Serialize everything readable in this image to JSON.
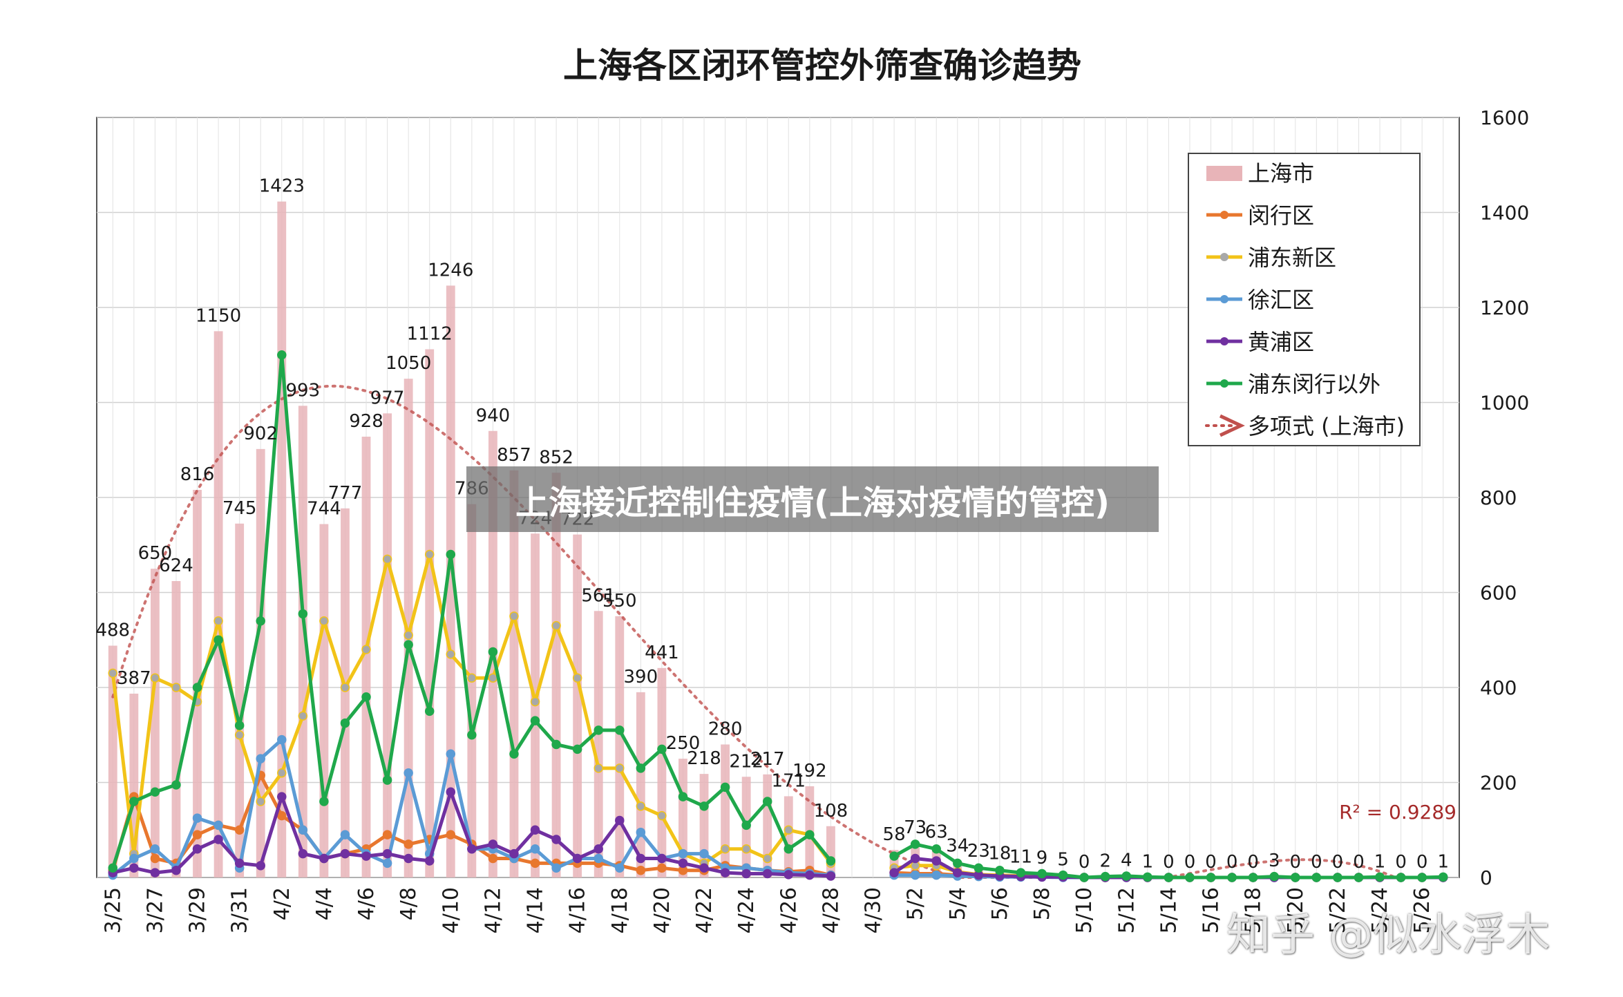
{
  "chart_data": {
    "type": "bar",
    "title": "上海各区闭环管控外筛查确诊趋势",
    "x": [
      "3/25",
      "3/26",
      "3/27",
      "3/28",
      "3/29",
      "3/30",
      "3/31",
      "4/1",
      "4/2",
      "4/3",
      "4/4",
      "4/5",
      "4/6",
      "4/7",
      "4/8",
      "4/9",
      "4/10",
      "4/11",
      "4/12",
      "4/13",
      "4/14",
      "4/15",
      "4/16",
      "4/17",
      "4/18",
      "4/19",
      "4/20",
      "4/21",
      "4/22",
      "4/23",
      "4/24",
      "4/25",
      "4/26",
      "4/27",
      "4/28",
      "4/29",
      "4/30",
      "5/1",
      "5/2",
      "5/3",
      "5/4",
      "5/5",
      "5/6",
      "5/7",
      "5/8",
      "5/9",
      "5/10",
      "5/11",
      "5/12",
      "5/13",
      "5/14",
      "5/15",
      "5/16",
      "5/17",
      "5/18",
      "5/19",
      "5/20",
      "5/21",
      "5/22",
      "5/23",
      "5/24",
      "5/25",
      "5/26",
      "5/27"
    ],
    "x_tick_labels": [
      "3/25",
      "3/27",
      "3/29",
      "3/31",
      "4/2",
      "4/4",
      "4/6",
      "4/8",
      "4/10",
      "4/12",
      "4/14",
      "4/16",
      "4/18",
      "4/20",
      "4/22",
      "4/24",
      "4/26",
      "4/28",
      "4/30",
      "5/2",
      "5/4",
      "5/6",
      "5/8",
      "5/10",
      "5/12",
      "5/14",
      "5/16",
      "5/18",
      "5/20",
      "5/22",
      "5/24",
      "5/26"
    ],
    "y_axis_side": "right",
    "ylim": [
      0,
      1600
    ],
    "y_ticks": [
      0,
      200,
      400,
      600,
      800,
      1000,
      1200,
      1400,
      1600
    ],
    "grid": true,
    "legend_position": "top-right",
    "series": [
      {
        "name": "上海市",
        "kind": "bar",
        "color": "#E8B4B8",
        "values": [
          488,
          387,
          650,
          624,
          816,
          1150,
          745,
          902,
          1423,
          993,
          744,
          777,
          928,
          977,
          1050,
          1112,
          1246,
          786,
          940,
          857,
          724,
          852,
          722,
          561,
          550,
          390,
          441,
          250,
          218,
          280,
          212,
          217,
          171,
          192,
          108,
          null,
          null,
          58,
          73,
          63,
          34,
          23,
          18,
          11,
          9,
          5,
          0,
          2,
          4,
          1,
          0,
          0,
          0,
          0,
          0,
          3,
          0,
          0,
          0,
          0,
          1,
          0,
          0,
          1
        ],
        "labels": [
          "488",
          "387",
          "650",
          "624",
          "816",
          "1150",
          "745",
          "902",
          "1423",
          "993",
          "744",
          "777",
          "928",
          "977",
          "1050",
          "1112",
          "1246",
          "786",
          "940",
          "857",
          "724",
          "852",
          "722",
          "561",
          "550",
          "390",
          "441",
          "250",
          "218",
          "280",
          "212",
          "217",
          "171",
          "192",
          "108",
          "",
          "",
          "58",
          "73",
          "63",
          "34",
          "23",
          "18",
          "11",
          "9",
          "5",
          "0",
          "2",
          "4",
          "1",
          "0",
          "0",
          "0",
          "0",
          "0",
          "3",
          "0",
          "0",
          "0",
          "0",
          "1",
          "0",
          "0",
          "1"
        ]
      },
      {
        "name": "闵行区",
        "kind": "line",
        "color": "#E8772E",
        "values": [
          15,
          170,
          40,
          30,
          90,
          110,
          100,
          215,
          130,
          100,
          40,
          50,
          60,
          90,
          70,
          80,
          90,
          70,
          40,
          40,
          30,
          30,
          30,
          30,
          25,
          15,
          20,
          15,
          15,
          25,
          20,
          15,
          12,
          15,
          5,
          null,
          null,
          10,
          8,
          8,
          5,
          4,
          3,
          2,
          2,
          1,
          0,
          0,
          1,
          0,
          0,
          0,
          0,
          0,
          0,
          1,
          0,
          0,
          0,
          0,
          0,
          0,
          0,
          0
        ]
      },
      {
        "name": "浦东新区",
        "kind": "line",
        "color": "#F2C318",
        "values": [
          430,
          50,
          420,
          400,
          370,
          540,
          300,
          160,
          220,
          340,
          540,
          400,
          480,
          670,
          510,
          680,
          470,
          420,
          420,
          550,
          370,
          530,
          420,
          230,
          230,
          150,
          130,
          50,
          30,
          60,
          60,
          40,
          100,
          90,
          30,
          null,
          null,
          20,
          25,
          25,
          12,
          6,
          5,
          3,
          2,
          1,
          0,
          0,
          1,
          0,
          0,
          0,
          0,
          0,
          0,
          1,
          0,
          0,
          0,
          0,
          0,
          0,
          0,
          0
        ]
      },
      {
        "name": "徐汇区",
        "kind": "line",
        "color": "#5B9BD5",
        "values": [
          5,
          40,
          60,
          20,
          125,
          110,
          20,
          250,
          290,
          100,
          40,
          90,
          50,
          30,
          220,
          50,
          260,
          60,
          60,
          40,
          60,
          20,
          40,
          40,
          20,
          95,
          40,
          50,
          50,
          20,
          20,
          15,
          10,
          8,
          5,
          null,
          null,
          5,
          5,
          5,
          3,
          2,
          1,
          1,
          1,
          0,
          0,
          0,
          0,
          0,
          0,
          0,
          0,
          0,
          0,
          0,
          0,
          0,
          0,
          0,
          0,
          0,
          0,
          0
        ]
      },
      {
        "name": "黄浦区",
        "kind": "line",
        "color": "#7030A0",
        "values": [
          10,
          20,
          10,
          15,
          60,
          80,
          30,
          25,
          170,
          50,
          40,
          50,
          45,
          50,
          40,
          35,
          180,
          60,
          70,
          50,
          100,
          80,
          40,
          60,
          120,
          40,
          40,
          30,
          20,
          10,
          8,
          8,
          6,
          5,
          3,
          null,
          null,
          10,
          40,
          35,
          10,
          5,
          3,
          2,
          1,
          1,
          0,
          0,
          0,
          0,
          0,
          0,
          0,
          0,
          0,
          0,
          0,
          0,
          0,
          0,
          0,
          0,
          0,
          0
        ]
      },
      {
        "name": "浦东闵行以外",
        "kind": "line",
        "color": "#1FA84B",
        "values": [
          20,
          160,
          180,
          195,
          400,
          500,
          320,
          540,
          1100,
          555,
          160,
          325,
          380,
          205,
          490,
          350,
          680,
          300,
          475,
          260,
          330,
          280,
          270,
          310,
          310,
          230,
          270,
          170,
          150,
          190,
          110,
          160,
          60,
          90,
          35,
          null,
          null,
          45,
          70,
          60,
          30,
          20,
          15,
          10,
          8,
          5,
          0,
          2,
          3,
          1,
          0,
          0,
          0,
          0,
          0,
          2,
          0,
          0,
          0,
          0,
          1,
          0,
          0,
          1
        ]
      },
      {
        "name": "多项式 (上海市)",
        "kind": "trendline",
        "color": "#C0504D"
      }
    ],
    "annotations": {
      "r_squared": "R² = 0.9289"
    }
  },
  "overlay": {
    "text": "上海接近控制住疫情(上海对疫情的管控)"
  },
  "watermark": {
    "text": "知乎 @似水浮木"
  }
}
